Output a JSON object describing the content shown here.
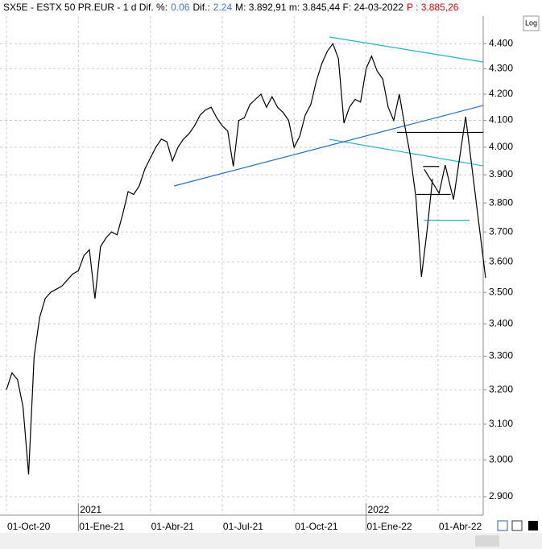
{
  "header": [
    {
      "text": "SX5E - ESTX 50 PR.EUR -  1 d  Dif. %:",
      "color": "#000"
    },
    {
      "text": "0.06",
      "color": "#3a78d8"
    },
    {
      "text": "Dif.:",
      "color": "#000"
    },
    {
      "text": "2.24",
      "color": "#3a78d8"
    },
    {
      "text": "M: 3.892,91  m: 3.845,44  F: 24-03-2022",
      "color": "#000"
    },
    {
      "text": "P : 3.885,26",
      "color": "#e00000"
    }
  ],
  "log_button": "Log",
  "chart_data": {
    "type": "line",
    "log_scale": true,
    "grid": true,
    "color": "#000",
    "categories": [
      "01-Oct-20",
      null,
      null,
      null,
      null,
      null,
      null,
      null,
      null,
      null,
      null,
      null,
      null,
      "01-Ene-21",
      null,
      null,
      null,
      null,
      null,
      null,
      null,
      null,
      null,
      null,
      null,
      null,
      "01-Abr-21",
      null,
      null,
      null,
      null,
      null,
      null,
      null,
      null,
      null,
      null,
      null,
      null,
      "01-Jul-21",
      null,
      null,
      null,
      null,
      null,
      null,
      null,
      null,
      null,
      null,
      null,
      null,
      "01-Oct-21",
      null,
      null,
      null,
      null,
      null,
      null,
      null,
      null,
      null,
      null,
      null,
      null,
      "01-Ene-22",
      null,
      null,
      null,
      null,
      null,
      null,
      null,
      null,
      null,
      null,
      null,
      null,
      "01-Abr-22",
      null,
      null,
      null,
      null,
      null,
      null,
      null,
      null
    ],
    "series": [
      {
        "name": "SX5E",
        "color": "#000",
        "values": [
          3200,
          3250,
          3230,
          3150,
          2960,
          3300,
          3420,
          3480,
          3500,
          3510,
          3520,
          3540,
          3560,
          3570,
          3620,
          3640,
          3480,
          3650,
          3680,
          3700,
          3690,
          3760,
          3840,
          3830,
          3860,
          3920,
          3960,
          4000,
          4030,
          4020,
          3950,
          4000,
          4030,
          4050,
          4080,
          4120,
          4140,
          4150,
          4110,
          4080,
          4060,
          3930,
          4100,
          4110,
          4160,
          4180,
          4200,
          4150,
          4190,
          4150,
          4130,
          4100,
          4000,
          4040,
          4120,
          4160,
          4250,
          4320,
          4370,
          4400,
          4340,
          4090,
          4150,
          4180,
          4170,
          4300,
          4350,
          4290,
          4260,
          4150,
          4100,
          4200,
          4080,
          3970,
          3820,
          3550,
          3700,
          3885,
          null,
          null,
          null,
          null,
          null,
          null,
          null,
          null,
          null
        ]
      }
    ],
    "year_markers": [
      {
        "label": "2021",
        "at": 13
      },
      {
        "label": "2022",
        "at": 65
      }
    ],
    "trendlines": [
      {
        "color": "#1fb5c8",
        "from": [
          58.4,
          4427
        ],
        "to": [
          86.2,
          4326
        ]
      },
      {
        "color": "#1fb5c8",
        "from": [
          58.4,
          4029
        ],
        "to": [
          86.2,
          3932
        ]
      },
      {
        "color": "#1f6fc8",
        "from": [
          30.3,
          3860
        ],
        "to": [
          86.2,
          4157
        ]
      },
      {
        "color": "#000",
        "from": [
          70.6,
          4055
        ],
        "to": [
          86.2,
          4055
        ]
      },
      {
        "color": "#1fb5c8",
        "from": [
          75.5,
          3740
        ],
        "to": [
          83.7,
          3740
        ]
      },
      {
        "color": "#000",
        "from": [
          75.3,
          3930
        ],
        "to": [
          78.2,
          3930
        ]
      },
      {
        "color": "#000",
        "from": [
          74.1,
          3830
        ],
        "to": [
          80.3,
          3830
        ]
      }
    ],
    "projection": {
      "color": "#000",
      "points": [
        [
          75.5,
          3920
        ],
        [
          78.2,
          3834
        ],
        [
          79.3,
          3935
        ],
        [
          80.8,
          3812
        ],
        [
          83,
          4114
        ],
        [
          86.6,
          3547
        ]
      ]
    },
    "ylim": [
      2851,
      4513
    ],
    "yticks": [
      {
        "value": 2900,
        "label": "2.900"
      },
      {
        "value": 3000,
        "label": "3.000"
      },
      {
        "value": 3100,
        "label": "3.100"
      },
      {
        "value": 3200,
        "label": "3.200"
      },
      {
        "value": 3300,
        "label": "3.300"
      },
      {
        "value": 3400,
        "label": "3.400"
      },
      {
        "value": 3500,
        "label": "3.500"
      },
      {
        "value": 3600,
        "label": "3.600"
      },
      {
        "value": 3700,
        "label": "3.700"
      },
      {
        "value": 3800,
        "label": "3.800"
      },
      {
        "value": 3900,
        "label": "3.900"
      },
      {
        "value": 4000,
        "label": "4.000"
      },
      {
        "value": 4100,
        "label": "4.100"
      },
      {
        "value": 4200,
        "label": "4.200"
      },
      {
        "value": 4300,
        "label": "4.300"
      },
      {
        "value": 4400,
        "label": "4.400"
      }
    ]
  }
}
